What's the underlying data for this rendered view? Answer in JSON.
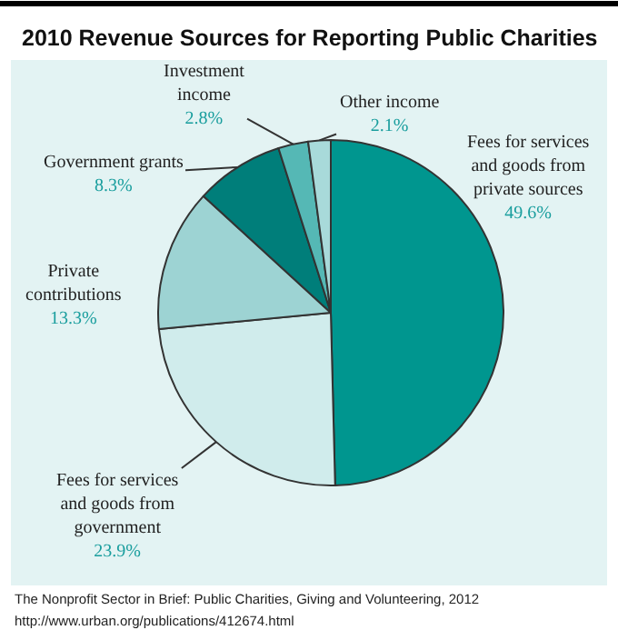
{
  "chart_data": {
    "type": "pie",
    "title": "2010 Revenue Sources for Reporting Public Charities",
    "categories": [
      "Fees for services\nand goods from\nprivate sources",
      "Fees for services\nand goods from\ngovernment",
      "Private\ncontributions",
      "Government grants",
      "Investment\nincome",
      "Other income"
    ],
    "values": [
      49.6,
      23.9,
      13.3,
      8.3,
      2.8,
      2.1
    ],
    "value_labels": [
      "49.6%",
      "23.9%",
      "13.3%",
      "8.3%",
      "2.8%",
      "2.1%"
    ],
    "colors": [
      "#00968f",
      "#d0ecec",
      "#9dd3d3",
      "#007e7a",
      "#55b8b5",
      "#a8dada"
    ],
    "legend": false,
    "annotations": [
      "The Nonprofit Sector in Brief: Public Charities, Giving and Volunteering, 2012",
      "http://www.urban.org/publications/412674.html"
    ]
  }
}
